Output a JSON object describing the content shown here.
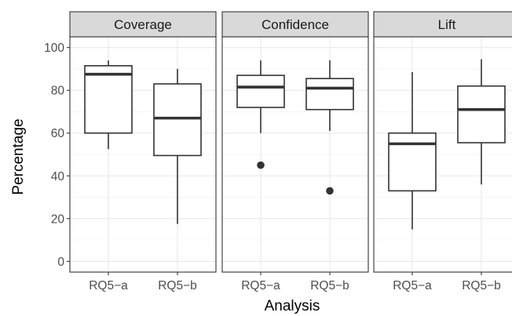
{
  "chart_data": {
    "type": "boxplot",
    "xlabel": "Analysis",
    "ylabel": "Percentage",
    "ylim": [
      -5,
      105
    ],
    "yticks": [
      0,
      20,
      40,
      60,
      80,
      100
    ],
    "categories": [
      "RQ5−a",
      "RQ5−b"
    ],
    "grid": true,
    "panels": [
      {
        "title": "Coverage",
        "boxes": [
          {
            "category": "RQ5−a",
            "whisker_low": 52.5,
            "q1": 60,
            "median": 87.5,
            "q3": 91.5,
            "whisker_high": 94,
            "outliers": []
          },
          {
            "category": "RQ5−b",
            "whisker_low": 17.5,
            "q1": 49.5,
            "median": 67,
            "q3": 83,
            "whisker_high": 90,
            "outliers": []
          }
        ]
      },
      {
        "title": "Confidence",
        "boxes": [
          {
            "category": "RQ5−a",
            "whisker_low": 60,
            "q1": 72,
            "median": 81.5,
            "q3": 87,
            "whisker_high": 94,
            "outliers": [
              45
            ]
          },
          {
            "category": "RQ5−b",
            "whisker_low": 61,
            "q1": 71,
            "median": 81,
            "q3": 85.5,
            "whisker_high": 94,
            "outliers": [
              33
            ]
          }
        ]
      },
      {
        "title": "Lift",
        "boxes": [
          {
            "category": "RQ5−a",
            "whisker_low": 15,
            "q1": 33,
            "median": 55,
            "q3": 60,
            "whisker_high": 88.5,
            "outliers": []
          },
          {
            "category": "RQ5−b",
            "whisker_low": 36,
            "q1": 55.5,
            "median": 71,
            "q3": 82,
            "whisker_high": 94.5,
            "outliers": []
          }
        ]
      }
    ]
  },
  "colors": {
    "strip_fill": "#d9d9d9",
    "strip_border": "#333333",
    "panel_border": "#333333",
    "grid_major": "#ebebeb",
    "grid_minor": "#f5f5f5",
    "box_line": "#333333",
    "outlier": "#333333"
  }
}
